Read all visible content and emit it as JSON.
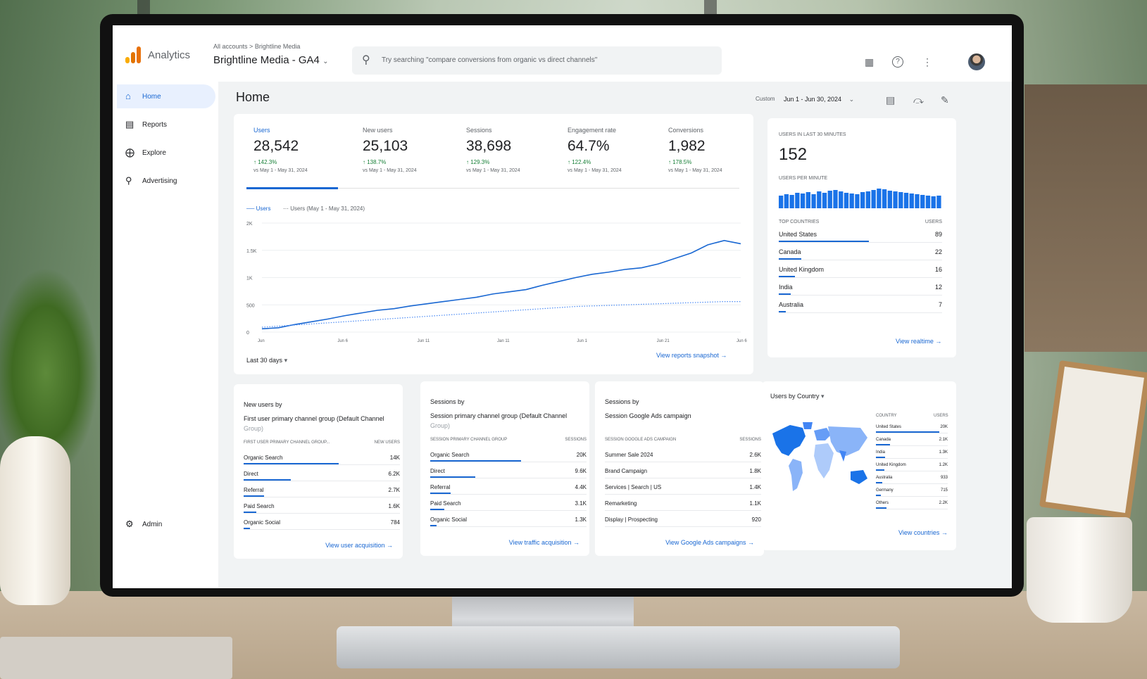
{
  "app": {
    "name": "Analytics",
    "logo_colors": [
      "#f9ab00",
      "#e37400",
      "#e8710a"
    ]
  },
  "header": {
    "breadcrumb": [
      "All accounts",
      "Brightline Media"
    ],
    "breadcrumb_sep": ">",
    "property": "Brightline Media - GA4",
    "search_placeholder": "Try searching \"compare conversions from organic vs direct channels\"",
    "icons": [
      "apps-icon",
      "help-icon",
      "more-vert-icon",
      "avatar"
    ]
  },
  "sidebar": {
    "items": [
      {
        "label": "Home",
        "icon": "home-icon",
        "active": true
      },
      {
        "label": "Reports",
        "icon": "reports-icon",
        "active": false
      },
      {
        "label": "Explore",
        "icon": "explore-icon",
        "active": false
      },
      {
        "label": "Advertising",
        "icon": "advertising-icon",
        "active": false
      }
    ],
    "admin": {
      "label": "Admin",
      "icon": "gear-icon"
    }
  },
  "page": {
    "title": "Home",
    "date_prefix": "Custom",
    "date_range": "Jun 1 - Jun 30, 2024"
  },
  "kpis": [
    {
      "label": "Users",
      "value": "28,542",
      "delta": "↑ 142.3%",
      "compare": "vs May 1 - May 31, 2024",
      "selected": true
    },
    {
      "label": "New users",
      "value": "25,103",
      "delta": "↑ 138.7%",
      "compare": "vs May 1 - May 31, 2024",
      "selected": false
    },
    {
      "label": "Sessions",
      "value": "38,698",
      "delta": "↑ 129.3%",
      "compare": "vs May 1 - May 31, 2024",
      "selected": false
    },
    {
      "label": "Engagement rate",
      "value": "64.7%",
      "delta": "↑ 122.4%",
      "compare": "vs May 1 - May 31, 2024",
      "selected": false
    },
    {
      "label": "Conversions",
      "value": "1,982",
      "delta": "↑ 178.5%",
      "compare": "vs May 1 - May 31, 2024",
      "selected": false
    }
  ],
  "chart_data": {
    "type": "line",
    "x_ticks": [
      "Jun",
      "Jun 6",
      "Jun 11",
      "Jan 11",
      "Jun 1",
      "Jun 21",
      "Jun 6"
    ],
    "y_ticks": [
      "0",
      "500",
      "1K",
      "1.5K",
      "2K"
    ],
    "ylim": [
      0,
      2000
    ],
    "x": [
      1,
      2,
      3,
      4,
      5,
      6,
      7,
      8,
      9,
      10,
      11,
      12,
      13,
      14,
      15,
      16,
      17,
      18,
      19,
      20,
      21,
      22,
      23,
      24,
      25,
      26,
      27,
      28,
      29,
      30
    ],
    "series": [
      {
        "name": "Users",
        "style": "solid",
        "values": [
          60,
          80,
          140,
          190,
          240,
          300,
          350,
          400,
          430,
          480,
          520,
          560,
          600,
          640,
          700,
          740,
          780,
          860,
          930,
          1000,
          1060,
          1100,
          1150,
          1180,
          1250,
          1350,
          1450,
          1600,
          1680,
          1620
        ]
      },
      {
        "name": "Users (May 1 - May 31, 2024)",
        "style": "dotted",
        "values": [
          90,
          110,
          130,
          150,
          170,
          190,
          210,
          230,
          250,
          270,
          290,
          310,
          330,
          350,
          370,
          390,
          410,
          430,
          450,
          470,
          480,
          490,
          500,
          510,
          520,
          530,
          540,
          550,
          560,
          560
        ]
      }
    ],
    "legend": "top-left",
    "period_label": "Last 30 days",
    "link": "View reports snapshot"
  },
  "realtime": {
    "label": "Users in last 30 minutes",
    "value": "152",
    "per_minute_label": "Users per minute",
    "per_minute": [
      18,
      20,
      19,
      22,
      21,
      23,
      20,
      24,
      22,
      25,
      26,
      24,
      22,
      21,
      20,
      23,
      24,
      26,
      28,
      27,
      25,
      24,
      23,
      22,
      21,
      20,
      19,
      18,
      17,
      18
    ],
    "countries_head": [
      "Top countries",
      "Users"
    ],
    "countries": [
      {
        "name": "United States",
        "value": 89
      },
      {
        "name": "Canada",
        "value": 22
      },
      {
        "name": "United Kingdom",
        "value": 16
      },
      {
        "name": "India",
        "value": 12
      },
      {
        "name": "Australia",
        "value": 7
      }
    ],
    "link": "View realtime"
  },
  "cards": [
    {
      "title": "New users by",
      "subtitle": "First user primary channel group (Default Channel",
      "subtitle_more": "Group)",
      "col1": "First user primary channel group...",
      "col2": "New users",
      "rows": [
        {
          "name": "Organic Search",
          "value": "14K",
          "frac": 0.61
        },
        {
          "name": "Direct",
          "value": "6.2K",
          "frac": 0.3
        },
        {
          "name": "Referral",
          "value": "2.7K",
          "frac": 0.13
        },
        {
          "name": "Paid Search",
          "value": "1.6K",
          "frac": 0.08
        },
        {
          "name": "Organic Social",
          "value": "784",
          "frac": 0.04
        }
      ],
      "link": "View user acquisition"
    },
    {
      "title": "Sessions by",
      "subtitle": "Session primary channel group (Default Channel",
      "subtitle_more": "Group)",
      "col1": "Session primary channel group",
      "col2": "Sessions",
      "rows": [
        {
          "name": "Organic Search",
          "value": "20K",
          "frac": 0.58
        },
        {
          "name": "Direct",
          "value": "9.6K",
          "frac": 0.29
        },
        {
          "name": "Referral",
          "value": "4.4K",
          "frac": 0.13
        },
        {
          "name": "Paid Search",
          "value": "3.1K",
          "frac": 0.09
        },
        {
          "name": "Organic Social",
          "value": "1.3K",
          "frac": 0.04
        }
      ],
      "link": "View traffic acquisition"
    },
    {
      "title": "Sessions by",
      "subtitle": "Session Google Ads campaign",
      "subtitle_more": "",
      "col1": "Session Google Ads campaign",
      "col2": "Sessions",
      "rows": [
        {
          "name": "Summer Sale 2024",
          "value": "2.6K",
          "frac": 0.0
        },
        {
          "name": "Brand Campaign",
          "value": "1.8K",
          "frac": 0.0
        },
        {
          "name": "Services | Search | US",
          "value": "1.4K",
          "frac": 0.0
        },
        {
          "name": "Remarketing",
          "value": "1.1K",
          "frac": 0.0
        },
        {
          "name": "Display | Prospecting",
          "value": "920",
          "frac": 0.0
        }
      ],
      "link": "View Google Ads campaigns"
    }
  ],
  "country_card": {
    "title": "Users by Country",
    "col1": "Country",
    "col2": "Users",
    "rows": [
      {
        "name": "United States",
        "value": "20K",
        "frac": 0.88
      },
      {
        "name": "Canada",
        "value": "2.1K",
        "frac": 0.2
      },
      {
        "name": "India",
        "value": "1.3K",
        "frac": 0.13
      },
      {
        "name": "United Kingdom",
        "value": "1.2K",
        "frac": 0.12
      },
      {
        "name": "Australia",
        "value": "933",
        "frac": 0.09
      },
      {
        "name": "Germany",
        "value": "715",
        "frac": 0.07
      },
      {
        "name": "Others",
        "value": "2.2K",
        "frac": 0.15
      }
    ],
    "link": "View countries"
  },
  "colors": {
    "accent": "#1967d2",
    "positive": "#188038",
    "map_dark": "#1a73e8",
    "map_light": "#aecbfa"
  }
}
